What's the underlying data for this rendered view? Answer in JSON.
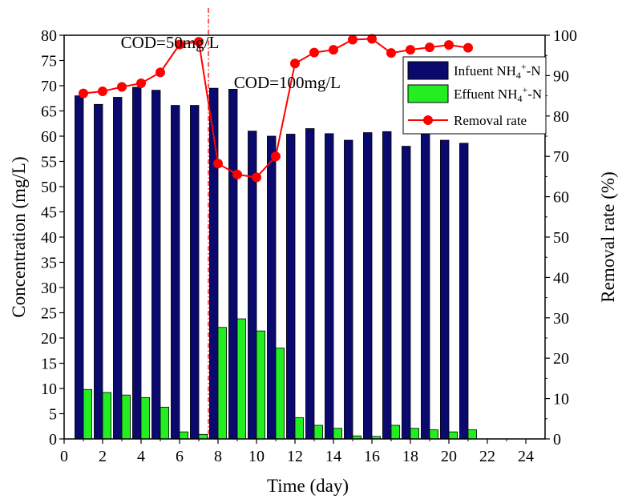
{
  "chart_data": {
    "type": "bar",
    "x_label": "Time (day)",
    "y_label": "Concentration (mg/L)",
    "y2_label": "Removal rate (%)",
    "x_range": [
      0,
      25
    ],
    "x_ticks": [
      0,
      2,
      4,
      6,
      8,
      10,
      12,
      14,
      16,
      18,
      20,
      22,
      24
    ],
    "y_range": [
      0,
      80
    ],
    "y_ticks": [
      0,
      5,
      10,
      15,
      20,
      25,
      30,
      35,
      40,
      45,
      50,
      55,
      60,
      65,
      70,
      75,
      80
    ],
    "y2_range": [
      0,
      100
    ],
    "y2_ticks": [
      0,
      10,
      20,
      30,
      40,
      50,
      60,
      70,
      80,
      90,
      100
    ],
    "x": [
      1,
      2,
      3,
      4,
      5,
      6,
      7,
      8,
      9,
      10,
      11,
      12,
      13,
      14,
      15,
      16,
      17,
      18,
      19,
      20,
      21
    ],
    "series": [
      {
        "name": "Infuent NH4+-N",
        "kind": "bar",
        "color": "#0a0a6e",
        "values": [
          68.0,
          66.3,
          67.7,
          69.7,
          69.1,
          66.1,
          66.1,
          69.5,
          69.3,
          61.0,
          60.0,
          60.4,
          61.5,
          60.5,
          59.2,
          60.7,
          60.9,
          58.0,
          60.6,
          59.2,
          58.6
        ]
      },
      {
        "name": "Effuent NH4+-N",
        "kind": "bar",
        "color": "#22ee22",
        "values": [
          9.8,
          9.2,
          8.7,
          8.2,
          6.3,
          1.4,
          0.9,
          22.1,
          23.8,
          21.4,
          18.0,
          4.2,
          2.7,
          2.1,
          0.6,
          0.5,
          2.7,
          2.1,
          1.8,
          1.4,
          1.8
        ]
      },
      {
        "name": "Removal rate",
        "kind": "line",
        "axis": "right",
        "color": "#ff0000",
        "values": [
          85.6,
          86.1,
          87.2,
          88.1,
          90.8,
          97.7,
          98.4,
          68.2,
          65.5,
          64.8,
          70.0,
          93.0,
          95.7,
          96.4,
          98.9,
          99.1,
          95.6,
          96.4,
          97.0,
          97.6,
          96.9
        ]
      }
    ],
    "phase_divider_x": 7.5,
    "annotations": [
      {
        "text": "COD=50mg/L",
        "x": 5.5,
        "y": 77.5
      },
      {
        "text": "COD=100mg/L",
        "x": 11.6,
        "y": 69.5
      }
    ],
    "legend_position": "top-right"
  }
}
